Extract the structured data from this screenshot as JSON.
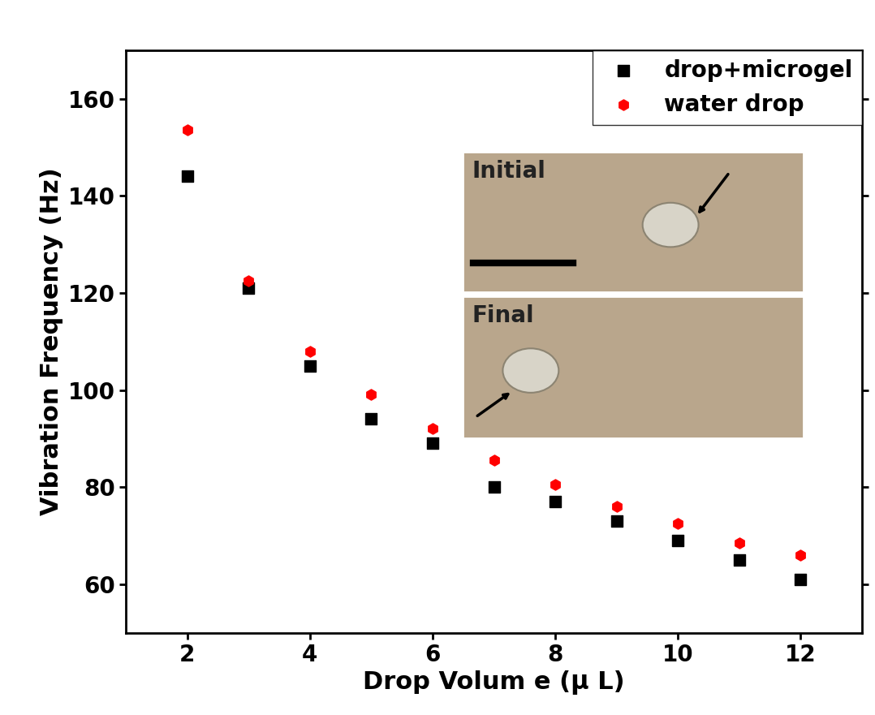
{
  "chart_data": {
    "type": "scatter",
    "x_label": "Drop Volum e (μ L)",
    "y_label": "Vibration Frequency (Hz)",
    "x": [
      2,
      3,
      4,
      5,
      6,
      7,
      8,
      9,
      10,
      11,
      12
    ],
    "series": [
      {
        "name": "drop+microgel",
        "color": "#000000",
        "marker": "square",
        "values": [
          144,
          121,
          105,
          94,
          89,
          80,
          77,
          73,
          69,
          65,
          61
        ]
      },
      {
        "name": "water drop",
        "color": "#ff0000",
        "marker": "hexagon",
        "values": [
          153.5,
          122.5,
          108,
          99,
          92,
          85.5,
          80.5,
          76,
          72.5,
          68.5,
          66
        ]
      }
    ],
    "xlim": [
      1,
      13
    ],
    "xticks": [
      2,
      4,
      6,
      8,
      10,
      12
    ],
    "ylim": [
      50,
      170
    ],
    "yticks": [
      60,
      80,
      100,
      120,
      140,
      160
    ],
    "legend": "upper right",
    "annotations": [
      "Initial",
      "Final"
    ]
  }
}
